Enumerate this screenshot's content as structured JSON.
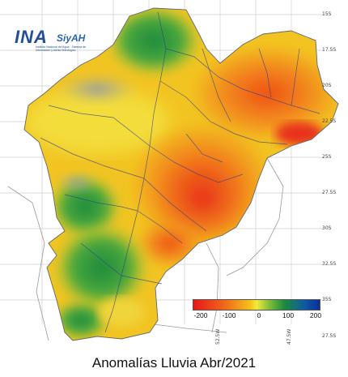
{
  "logo": {
    "name": "INA",
    "system": "SiyAH",
    "subtitle": "Instituto Nacional del Agua · Sistema de Información y Alerta Hidrológico"
  },
  "caption": "Anomalías Lluvia Abr/2021",
  "legend": {
    "ticks": [
      "-200",
      "-100",
      "0",
      "100",
      "200"
    ],
    "colors": [
      "#e8141b",
      "#ef6a17",
      "#f7c01b",
      "#f3ec3c",
      "#7fbf3a",
      "#1d8a3c",
      "#0f5aa0",
      "#0b2d9c"
    ]
  },
  "latitude_labels": [
    "15S",
    "17.5S",
    "20S",
    "22.5S",
    "25S",
    "27.5S",
    "30S",
    "32.5S",
    "35S"
  ],
  "longitude_labels": [
    "52.5W",
    "47.5W"
  ],
  "bottom_right_label": "27.5S"
}
